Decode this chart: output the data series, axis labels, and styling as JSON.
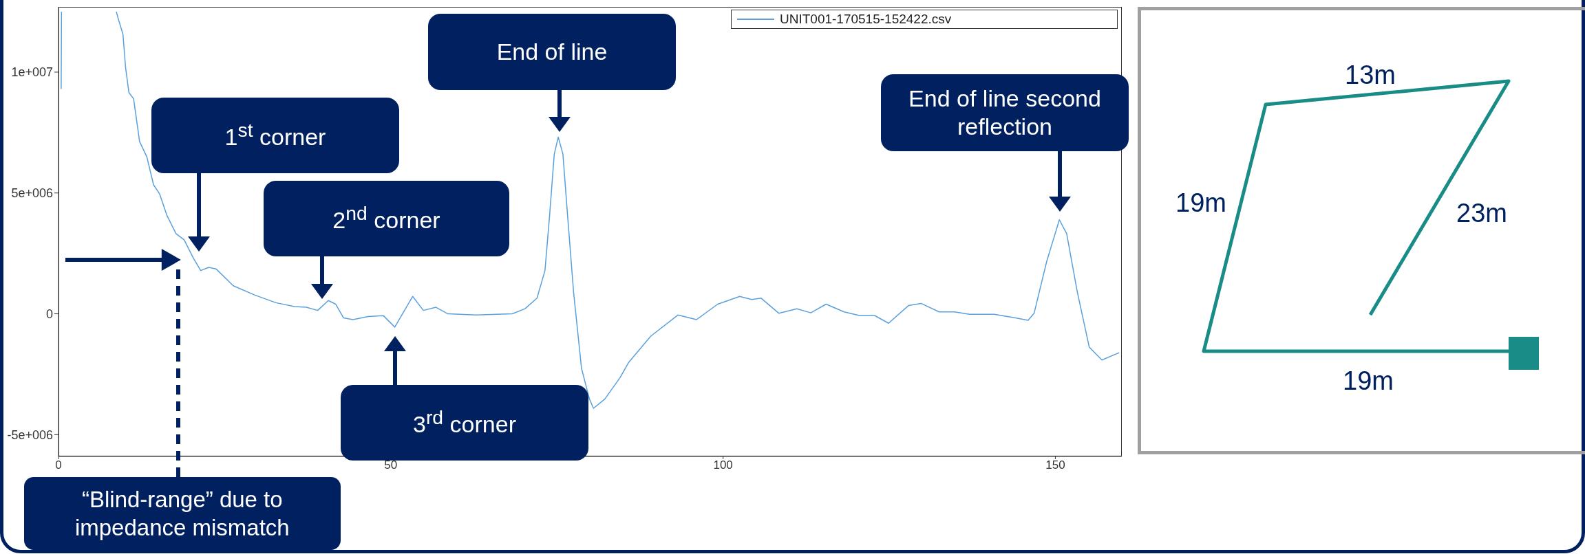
{
  "chart_data": [
    {
      "type": "line",
      "legend": "top right",
      "xlim": [
        0,
        160
      ],
      "xticks": [
        0,
        50,
        100,
        150
      ],
      "ylim": [
        -5900000,
        12700000
      ],
      "yticks": [
        {
          "value": -5000000,
          "label": "-5e+006"
        },
        0,
        {
          "value": 5000000,
          "label": "5e+006"
        },
        {
          "value": 10000000,
          "label": "1e+007"
        }
      ],
      "x": [
        0.4,
        0.45,
        4,
        8.7,
        9,
        9.7,
        10.1,
        10.6,
        11.3,
        12.2,
        13.3,
        14.3,
        15.2,
        16.3,
        17.7,
        18.9,
        20.3,
        21.4,
        22.6,
        23.7,
        26.3,
        29.5,
        32.7,
        35.5,
        37.3,
        39,
        40.6,
        41.7,
        42.9,
        44.3,
        46.6,
        48.9,
        50.6,
        53.3,
        54.9,
        56.8,
        58.6,
        62.8,
        68.3,
        70.2,
        72,
        73.2,
        73.9,
        74.6,
        75.2,
        75.9,
        76.6,
        77.5,
        78.7,
        79.9,
        80.5,
        82.2,
        84.5,
        85.8,
        89.1,
        93.2,
        96,
        99.2,
        102.5,
        104.3,
        105.7,
        108.4,
        111.1,
        113.2,
        115.5,
        118.2,
        120.5,
        122.8,
        124.9,
        127.9,
        129.8,
        132.5,
        134.8,
        137.1,
        140.8,
        144,
        145.9,
        146.8,
        148.7,
        150.6,
        151.7,
        153.3,
        155.1,
        157,
        159.6
      ],
      "series": [
        {
          "name": "UNIT001-170515-152422.csv",
          "color": "#5aa0dc",
          "values": [
            9300000,
            12500000,
            null,
            12500000,
            12200000,
            11560000,
            10170000,
            9150000,
            8900000,
            7130000,
            6490000,
            5340000,
            4970000,
            4080000,
            3310000,
            3060000,
            2300000,
            1790000,
            1920000,
            1860000,
            1160000,
            780000,
            460000,
            300000,
            270000,
            140000,
            550000,
            400000,
            -170000,
            -240000,
            -110000,
            -80000,
            -550000,
            720000,
            140000,
            270000,
            0,
            -50000,
            0,
            210000,
            650000,
            1790000,
            4080000,
            6610000,
            7310000,
            6610000,
            4080000,
            910000,
            -2260000,
            -3530000,
            -3910000,
            -3530000,
            -2640000,
            -2010000,
            -930000,
            -50000,
            -240000,
            400000,
            720000,
            590000,
            650000,
            20000,
            210000,
            40000,
            400000,
            80000,
            -70000,
            -70000,
            -390000,
            340000,
            430000,
            80000,
            80000,
            -20000,
            -20000,
            -170000,
            -270000,
            20000,
            2170000,
            3890000,
            3320000,
            910000,
            -1380000,
            -1910000,
            -1610000
          ]
        }
      ],
      "annotations": [
        "1$^{st}$ corner",
        "2$^{nd}$ corner",
        "3$^{rd}$ corner",
        "End of line",
        "End of line second reflection"
      ],
      "ref_lines": [
        {
          "axis": "x",
          "value": 18,
          "label": "“Blind-range” due to impedance mismatch",
          "line_style": "dashed",
          "color": "#002060"
        }
      ]
    },
    {
      "type": "other",
      "annotations": [
        "13m",
        "19m",
        "23m",
        "19m"
      ]
    }
  ]
}
